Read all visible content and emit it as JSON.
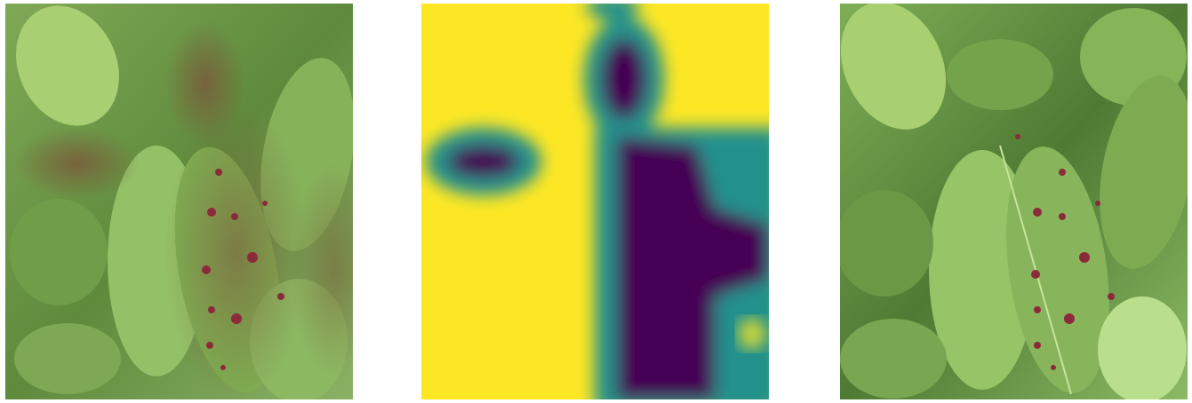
{
  "figure": {
    "panels": [
      {
        "id": "overlay",
        "description_icon": "leaf-photo-with-heatmap-overlay"
      },
      {
        "id": "heatmap",
        "description_icon": "attention-heatmap",
        "colormap": [
          "#440154",
          "#21918c",
          "#fde725"
        ]
      },
      {
        "id": "original",
        "description_icon": "leaf-photo-original"
      }
    ],
    "colors": {
      "leaf_light": "#9cc46a",
      "leaf_mid": "#6e9a45",
      "leaf_dark": "#3f6127",
      "spot": "#8b2b3a",
      "heat_low": "#440154",
      "heat_mid": "#21918c",
      "heat_high": "#fde725"
    }
  }
}
